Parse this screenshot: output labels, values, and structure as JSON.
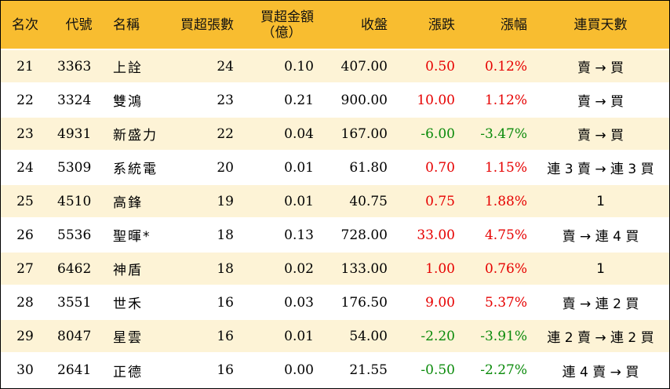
{
  "headers": {
    "rank": "名次",
    "code": "代號",
    "name": "名稱",
    "net_lots": "買超張數",
    "net_amount_line1": "買超金額",
    "net_amount_line2": "（億）",
    "close": "收盤",
    "change": "漲跌",
    "change_pct": "漲幅",
    "streak": "連買天數"
  },
  "colors": {
    "header_bg": "#f8bd30",
    "odd_row_bg": "#fdf3d6",
    "up": "#e60000",
    "down": "#0a8a0a"
  },
  "rows": [
    {
      "rank": "21",
      "code": "3363",
      "name": "上詮",
      "net_lots": "24",
      "net_amount": "0.10",
      "close": "407.00",
      "change": "0.50",
      "change_pct": "0.12%",
      "direction": "up",
      "streak": "賣 → 買"
    },
    {
      "rank": "22",
      "code": "3324",
      "name": "雙鴻",
      "net_lots": "23",
      "net_amount": "0.21",
      "close": "900.00",
      "change": "10.00",
      "change_pct": "1.12%",
      "direction": "up",
      "streak": "賣 → 買"
    },
    {
      "rank": "23",
      "code": "4931",
      "name": "新盛力",
      "net_lots": "22",
      "net_amount": "0.04",
      "close": "167.00",
      "change": "-6.00",
      "change_pct": "-3.47%",
      "direction": "down",
      "streak": "賣 → 買"
    },
    {
      "rank": "24",
      "code": "5309",
      "name": "系統電",
      "net_lots": "20",
      "net_amount": "0.01",
      "close": "61.80",
      "change": "0.70",
      "change_pct": "1.15%",
      "direction": "up",
      "streak": "連 3 賣 → 連 3 買"
    },
    {
      "rank": "25",
      "code": "4510",
      "name": "高鋒",
      "net_lots": "19",
      "net_amount": "0.01",
      "close": "40.75",
      "change": "0.75",
      "change_pct": "1.88%",
      "direction": "up",
      "streak": "1"
    },
    {
      "rank": "26",
      "code": "5536",
      "name": "聖暉*",
      "net_lots": "18",
      "net_amount": "0.13",
      "close": "728.00",
      "change": "33.00",
      "change_pct": "4.75%",
      "direction": "up",
      "streak": "賣 → 連 4 買"
    },
    {
      "rank": "27",
      "code": "6462",
      "name": "神盾",
      "net_lots": "18",
      "net_amount": "0.02",
      "close": "133.00",
      "change": "1.00",
      "change_pct": "0.76%",
      "direction": "up",
      "streak": "1"
    },
    {
      "rank": "28",
      "code": "3551",
      "name": "世禾",
      "net_lots": "16",
      "net_amount": "0.03",
      "close": "176.50",
      "change": "9.00",
      "change_pct": "5.37%",
      "direction": "up",
      "streak": "賣 → 連 2 買"
    },
    {
      "rank": "29",
      "code": "8047",
      "name": "星雲",
      "net_lots": "16",
      "net_amount": "0.01",
      "close": "54.00",
      "change": "-2.20",
      "change_pct": "-3.91%",
      "direction": "down",
      "streak": "連 2 賣 → 連 2 買"
    },
    {
      "rank": "30",
      "code": "2641",
      "name": "正德",
      "net_lots": "16",
      "net_amount": "0.00",
      "close": "21.55",
      "change": "-0.50",
      "change_pct": "-2.27%",
      "direction": "down",
      "streak": "連 4 賣 → 買"
    }
  ]
}
